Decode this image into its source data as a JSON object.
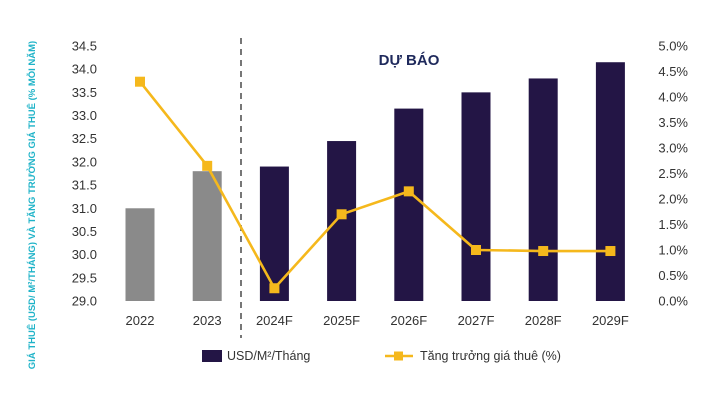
{
  "chart_data": {
    "type": "bar",
    "categories": [
      "2022",
      "2023",
      "2024F",
      "2025F",
      "2026F",
      "2027F",
      "2028F",
      "2029F"
    ],
    "series": [
      {
        "name": "USD/M²/Tháng",
        "type": "bar",
        "axis": "left",
        "values": [
          31.0,
          31.8,
          31.9,
          32.45,
          33.15,
          33.5,
          33.8,
          34.15
        ],
        "colors": [
          "#8a8a8a",
          "#8a8a8a",
          "#231545",
          "#231545",
          "#231545",
          "#231545",
          "#231545",
          "#231545"
        ]
      },
      {
        "name": "Tăng trưởng giá thuê (%)",
        "type": "line",
        "axis": "right",
        "values": [
          4.3,
          2.65,
          0.25,
          1.7,
          2.15,
          1.0,
          0.98,
          0.98
        ],
        "color": "#f5b81c"
      }
    ],
    "ylabel": "GIÁ THUÊ (USD/ M²/THÁNG) VÀ TĂNG TRƯỞNG GIÁ THUÊ (% MỖI NĂM)",
    "ylim": [
      29.0,
      34.5
    ],
    "yticks": [
      "29.0",
      "29.5",
      "30.0",
      "30.5",
      "31.0",
      "31.5",
      "32.0",
      "32.5",
      "33.0",
      "33.5",
      "34.0",
      "34.5"
    ],
    "y2lim": [
      0.0,
      5.0
    ],
    "y2ticks": [
      "0.0%",
      "0.5%",
      "1.0%",
      "1.5%",
      "2.0%",
      "2.5%",
      "3.0%",
      "3.5%",
      "4.0%",
      "4.5%",
      "5.0%"
    ],
    "annotation": "DỰ BÁO",
    "forecast_start": "2024F",
    "grid": false,
    "legend": "bottom"
  }
}
